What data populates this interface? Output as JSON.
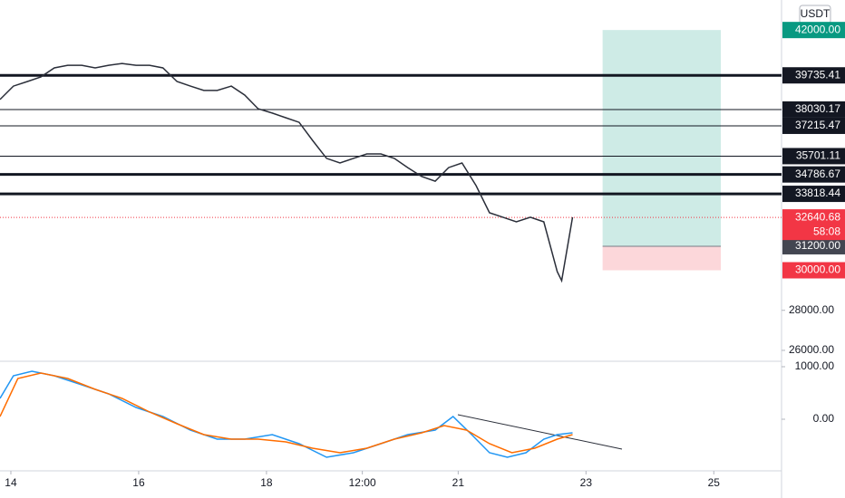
{
  "chart_data": [
    {
      "type": "line",
      "currency": "USDT",
      "xlim": [
        13.83,
        26.06
      ],
      "xticks": [
        14,
        16,
        18,
        {
          "value": 19.5,
          "label": "12:00"
        },
        21,
        23,
        25
      ],
      "ylim": [
        25500,
        43500
      ],
      "yticks": [
        {
          "value": 28000,
          "label": "28000.00"
        },
        {
          "value": 26000,
          "label": "26000.00"
        }
      ],
      "series": [
        {
          "color": "#2a2e39",
          "x": [
            13.83,
            14.04,
            14.26,
            14.47,
            14.68,
            14.89,
            15.11,
            15.32,
            15.53,
            15.74,
            15.96,
            16.17,
            16.38,
            16.6,
            16.81,
            17.02,
            17.23,
            17.45,
            17.66,
            17.87,
            18.09,
            18.3,
            18.51,
            18.72,
            18.94,
            19.15,
            19.36,
            19.57,
            19.79,
            20.0,
            20.21,
            20.43,
            20.64,
            20.85,
            21.06,
            21.28,
            21.49,
            21.7,
            21.91,
            22.13,
            22.34,
            22.55,
            22.62,
            22.79
          ],
          "values": [
            38530,
            39200,
            39430,
            39660,
            40110,
            40240,
            40240,
            40110,
            40240,
            40330,
            40240,
            40240,
            40110,
            39430,
            39200,
            38980,
            38980,
            39200,
            38750,
            38070,
            37850,
            37620,
            37390,
            36490,
            35590,
            35360,
            35590,
            35810,
            35810,
            35590,
            35130,
            34680,
            34450,
            35130,
            35360,
            34230,
            32870,
            32650,
            32420,
            32650,
            32420,
            29930,
            29480,
            32650
          ]
        }
      ],
      "levels": [
        {
          "value": 39735.41,
          "line_width": 3
        },
        {
          "value": 38030.17,
          "line_width": 1
        },
        {
          "value": 37215.47,
          "line_width": 1
        },
        {
          "value": 35701.11,
          "line_width": 1
        },
        {
          "value": 34786.67,
          "line_width": 3
        },
        {
          "value": 33818.44,
          "line_width": 3
        }
      ],
      "last": {
        "value": 32640.68,
        "countdown": "58:08",
        "color": "#f23645"
      },
      "position": {
        "x": [
          23.26,
          25.11
        ],
        "target": {
          "value": 42000,
          "label": "42000.00"
        },
        "entry": {
          "value": 31200,
          "label": "31200.00"
        },
        "stop": {
          "value": 30000,
          "label": "30000.00"
        }
      }
    },
    {
      "type": "line",
      "ylim": [
        -983,
        1086
      ],
      "yticks": [
        {
          "value": 1000,
          "label": "1000.00"
        },
        {
          "value": 0,
          "label": "0.00"
        }
      ],
      "series": [
        {
          "color": "#2196f3",
          "x": [
            13.83,
            14.04,
            14.33,
            14.68,
            15.11,
            15.53,
            15.96,
            16.38,
            16.81,
            17.23,
            17.66,
            18.09,
            18.51,
            18.94,
            19.36,
            19.79,
            20.21,
            20.64,
            20.92,
            21.21,
            21.49,
            21.77,
            22.06,
            22.34,
            22.55,
            22.79
          ],
          "values": [
            397,
            828,
            914,
            828,
            655,
            483,
            224,
            52,
            -207,
            -379,
            -379,
            -293,
            -466,
            -724,
            -638,
            -466,
            -293,
            -207,
            52,
            -293,
            -638,
            -724,
            -638,
            -379,
            -293,
            -259
          ]
        },
        {
          "color": "#ff6d00",
          "x": [
            13.83,
            14.11,
            14.47,
            14.89,
            15.32,
            15.74,
            16.17,
            16.6,
            17.02,
            17.45,
            17.87,
            18.3,
            18.72,
            19.15,
            19.57,
            20.0,
            20.43,
            20.78,
            21.13,
            21.49,
            21.84,
            22.2,
            22.55,
            22.79
          ],
          "values": [
            52,
            776,
            879,
            776,
            569,
            397,
            138,
            -86,
            -293,
            -379,
            -379,
            -431,
            -552,
            -638,
            -552,
            -379,
            -259,
            -121,
            -207,
            -466,
            -638,
            -552,
            -379,
            -293
          ]
        }
      ]
    }
  ]
}
